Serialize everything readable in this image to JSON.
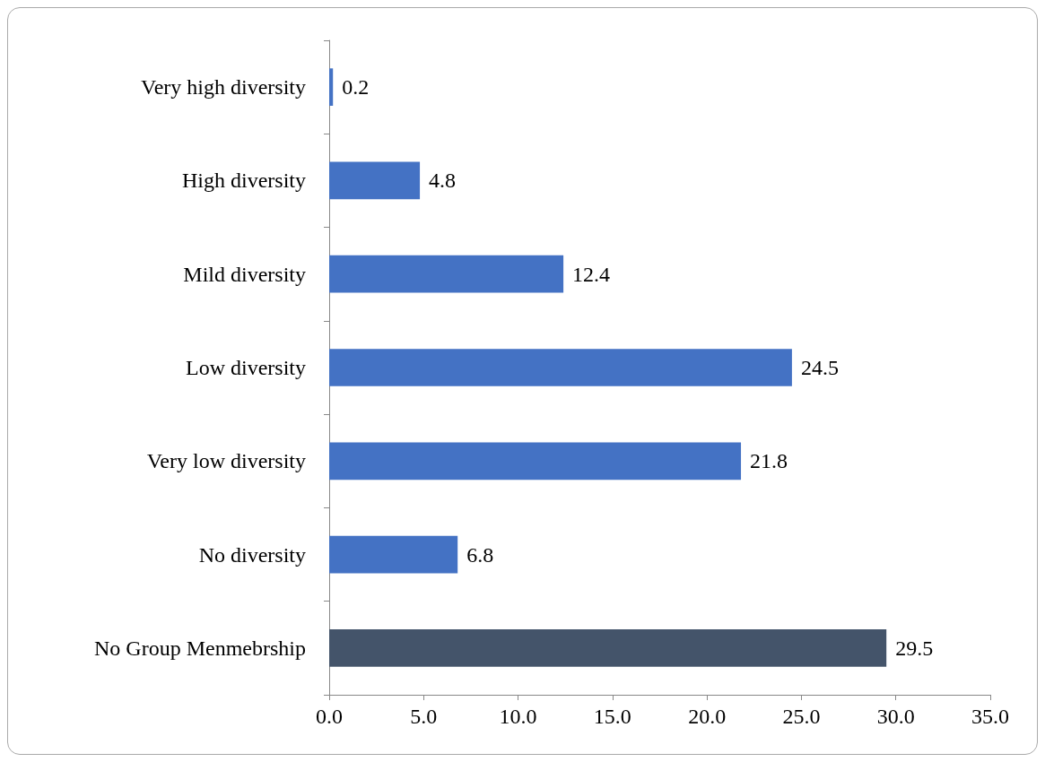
{
  "chart_data": {
    "type": "bar",
    "orientation": "horizontal",
    "categories": [
      "Very high diversity",
      "High diversity",
      "Mild diversity",
      "Low diversity",
      "Very low diversity",
      "No diversity",
      "No Group Menmebrship"
    ],
    "values": [
      0.2,
      4.8,
      12.4,
      24.5,
      21.8,
      6.8,
      29.5
    ],
    "colors": [
      "#4472c4",
      "#4472c4",
      "#4472c4",
      "#4472c4",
      "#4472c4",
      "#4472c4",
      "#44546a"
    ],
    "xlim": [
      0,
      35
    ],
    "xticks": [
      {
        "value": 0,
        "label": "0.0"
      },
      {
        "value": 5,
        "label": "5.0"
      },
      {
        "value": 10,
        "label": "10.0"
      },
      {
        "value": 15,
        "label": "15.0"
      },
      {
        "value": 20,
        "label": "20.0"
      },
      {
        "value": 25,
        "label": "25.0"
      },
      {
        "value": 30,
        "label": "30.0"
      },
      {
        "value": 35,
        "label": "35.0"
      }
    ],
    "data_labels": true,
    "grid": false
  }
}
